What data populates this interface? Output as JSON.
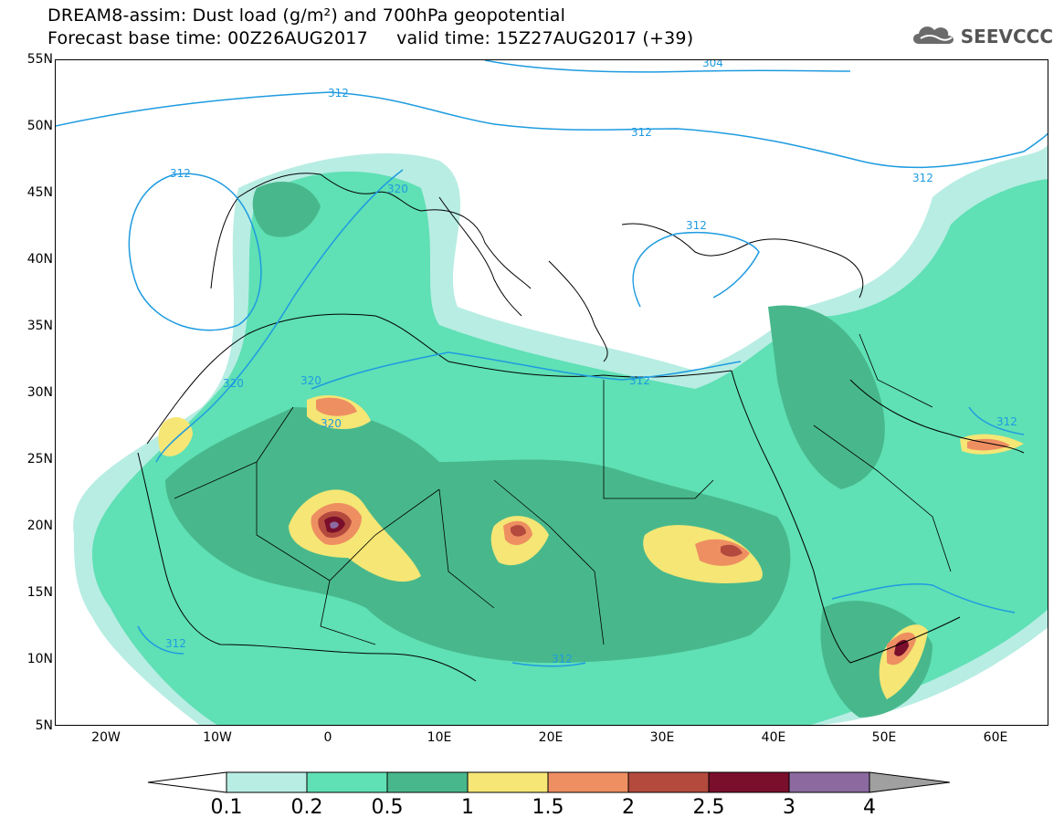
{
  "title": {
    "line1": "DREAM8-assim: Dust load (g/m²) and 700hPa geopotential",
    "line2": "Forecast base time: 00Z26AUG2017     valid time: 15Z27AUG2017 (+39)"
  },
  "logo": {
    "text": "SEEVCCC",
    "icon": "cloud-icon"
  },
  "map": {
    "lat_labels": [
      "55N",
      "50N",
      "45N",
      "40N",
      "35N",
      "30N",
      "25N",
      "20N",
      "15N",
      "10N",
      "5N"
    ],
    "lon_labels": [
      "20W",
      "10W",
      "0",
      "10E",
      "20E",
      "30E",
      "40E",
      "50E",
      "60E"
    ],
    "contour_labels": [
      "304",
      "312",
      "312",
      "312",
      "312",
      "312",
      "312",
      "312",
      "320",
      "320",
      "320",
      "320",
      "312",
      "312"
    ]
  },
  "colorbar": {
    "labels": [
      "0.1",
      "0.2",
      "0.5",
      "1",
      "1.5",
      "2",
      "2.5",
      "3",
      "4"
    ],
    "colors": [
      "#b8ede3",
      "#5fe0b5",
      "#48b88c",
      "#f5e675",
      "#ee8f62",
      "#b44a3e",
      "#7a0f2c",
      "#8c6aa0",
      "#a0a0a0"
    ],
    "under_color": "#ffffff"
  }
}
